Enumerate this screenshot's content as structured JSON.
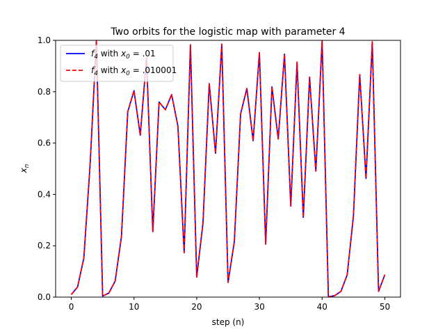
{
  "chart_data": {
    "type": "line",
    "title": "Two orbits for the logistic map with parameter 4",
    "xlabel": "step (n)",
    "ylabel": "x_n",
    "xlim": [
      -2.5,
      52.5
    ],
    "ylim": [
      0.0,
      1.0
    ],
    "xticks": [
      0,
      10,
      20,
      30,
      40,
      50
    ],
    "yticks": [
      0.0,
      0.2,
      0.4,
      0.6,
      0.8,
      1.0
    ],
    "xtick_labels": [
      "0",
      "10",
      "20",
      "30",
      "40",
      "50"
    ],
    "ytick_labels": [
      "0.0",
      "0.2",
      "0.4",
      "0.6",
      "0.8",
      "1.0"
    ],
    "grid": false,
    "legend_position": "upper-left",
    "series": [
      {
        "name": "f4 with x0 = .01",
        "legend_f": "f",
        "legend_f_sub": "4",
        "legend_mid": " with ",
        "legend_x": "x",
        "legend_x_sub": "0",
        "legend_val": " = .01",
        "color": "#0000ff",
        "dash": "solid",
        "x": [
          0,
          1,
          2,
          3,
          4,
          5,
          6,
          7,
          8,
          9,
          10,
          11,
          12,
          13,
          14,
          15,
          16,
          17,
          18,
          19,
          20,
          21,
          22,
          23,
          24,
          25,
          26,
          27,
          28,
          29,
          30,
          31,
          32,
          33,
          34,
          35,
          36,
          37,
          38,
          39,
          40,
          41,
          42,
          43,
          44,
          45,
          46,
          47,
          48,
          49,
          50
        ],
        "y": [
          0.01,
          0.0396,
          0.1521,
          0.5159,
          0.999,
          0.004,
          0.016,
          0.063,
          0.236,
          0.7215,
          0.8038,
          0.6308,
          0.9316,
          0.255,
          0.7599,
          0.7298,
          0.7887,
          0.667,
          0.1733,
          0.9825,
          0.078,
          0.2876,
          0.8315,
          0.5604,
          0.9855,
          0.0572,
          0.2158,
          0.7138,
          0.8126,
          0.6092,
          0.9523,
          0.2064,
          0.8191,
          0.6158,
          0.9464,
          0.3543,
          0.9151,
          0.3108,
          0.8568,
          0.4908,
          0.9997,
          0.0014,
          0.0056,
          0.0222,
          0.0869,
          0.3174,
          0.8666,
          0.4624,
          0.9944,
          0.0223,
          0.0871
        ]
      },
      {
        "name": "f4 with x0 = .010001",
        "legend_f": "f",
        "legend_f_sub": "4",
        "legend_mid": " with ",
        "legend_x": "x",
        "legend_x_sub": "0",
        "legend_val": " = .010001",
        "color": "#ff0000",
        "dash": "dashed",
        "x": [
          0,
          1,
          2,
          3,
          4,
          5,
          6,
          7,
          8,
          9,
          10,
          11,
          12,
          13,
          14,
          15,
          16,
          17,
          18,
          19,
          20,
          21,
          22,
          23,
          24,
          25,
          26,
          27,
          28,
          29,
          30,
          31,
          32,
          33,
          34,
          35,
          36,
          37,
          38,
          39,
          40,
          41,
          42,
          43,
          44,
          45,
          46,
          47,
          48,
          49,
          50
        ],
        "y": [
          0.010001,
          0.0396,
          0.1521,
          0.5159,
          0.999,
          0.004,
          0.016,
          0.063,
          0.236,
          0.7215,
          0.8038,
          0.6308,
          0.9316,
          0.255,
          0.7599,
          0.7298,
          0.7887,
          0.667,
          0.1733,
          0.9825,
          0.078,
          0.2876,
          0.8315,
          0.5604,
          0.9855,
          0.0572,
          0.2158,
          0.7138,
          0.8126,
          0.6092,
          0.9523,
          0.2064,
          0.8191,
          0.6158,
          0.9464,
          0.3543,
          0.9151,
          0.3108,
          0.8568,
          0.4908,
          0.9997,
          0.0014,
          0.0056,
          0.0222,
          0.0869,
          0.3174,
          0.8666,
          0.4624,
          0.9944,
          0.0223,
          0.0871
        ]
      }
    ]
  }
}
